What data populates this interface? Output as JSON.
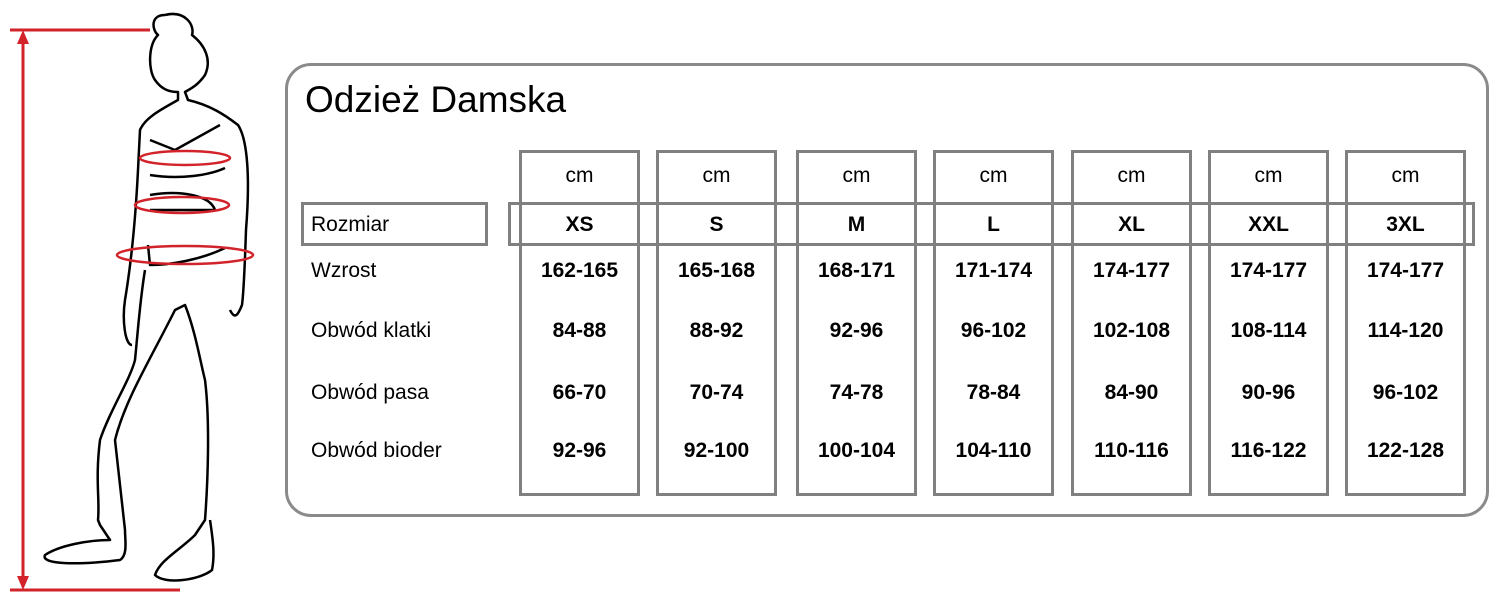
{
  "title": "Odzież Damska",
  "colors": {
    "measure_lines": "#d2232a",
    "borders": "#808080"
  },
  "unit": "cm",
  "size_label": "Rozmiar",
  "sizes": [
    "XS",
    "S",
    "M",
    "L",
    "XL",
    "XXL",
    "3XL"
  ],
  "rows": [
    {
      "label": "Wzrost",
      "values": [
        "162-165",
        "165-168",
        "168-171",
        "171-174",
        "174-177",
        "174-177",
        "174-177"
      ]
    },
    {
      "label": "Obwód klatki",
      "values": [
        "84-88",
        "88-92",
        "92-96",
        "96-102",
        "102-108",
        "108-114",
        "114-120"
      ]
    },
    {
      "label": "Obwód pasa",
      "values": [
        "66-70",
        "70-74",
        "74-78",
        "78-84",
        "84-90",
        "90-96",
        "96-102"
      ]
    },
    {
      "label": "Obwód bioder",
      "values": [
        "92-96",
        "92-100",
        "100-104",
        "104-110",
        "110-116",
        "116-122",
        "122-128"
      ]
    }
  ]
}
